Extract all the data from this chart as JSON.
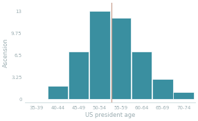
{
  "categories": [
    "35-39",
    "40-44",
    "45-49",
    "50-54",
    "55-59",
    "60-64",
    "65-69",
    "70-74"
  ],
  "values": [
    0,
    2,
    7,
    13,
    12,
    7,
    3,
    1
  ],
  "bar_color": "#3a8fa0",
  "bar_edge_color": "#ffffff",
  "vline_x": 3.55,
  "vline_color": "#c9a090",
  "xlabel": "US president age",
  "ylabel": "Ascension",
  "yticks": [
    0,
    3.25,
    6.5,
    9.75,
    13
  ],
  "ytick_labels": [
    "0",
    "3.25",
    "6.5",
    "9.75",
    "13"
  ],
  "ylim": [
    -0.5,
    14.2
  ],
  "xlim": [
    -0.55,
    7.55
  ],
  "background_color": "#ffffff",
  "axes_spine_color": "#c8d8db",
  "text_color": "#9aacb0",
  "label_fontsize": 6.0,
  "tick_fontsize": 5.0
}
